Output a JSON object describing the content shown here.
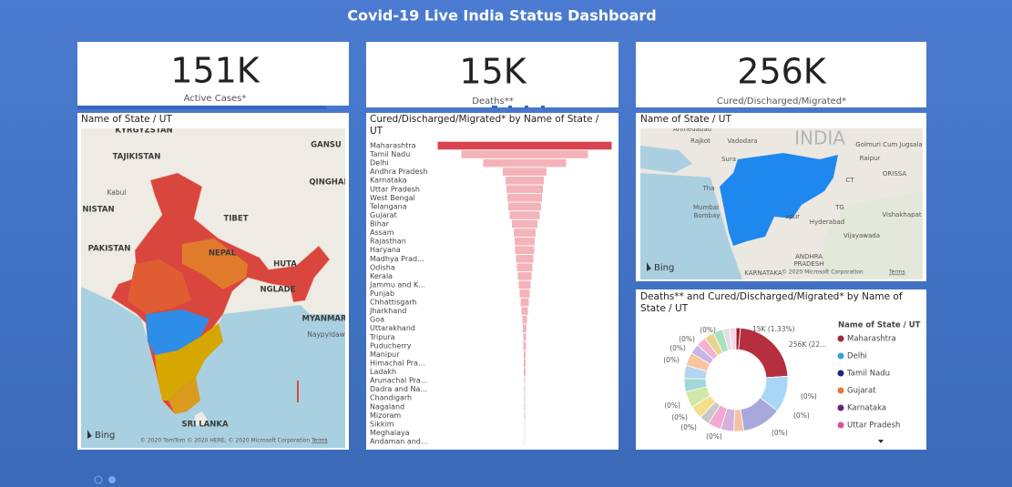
{
  "header": {
    "title": "Covid-19 Live India Status Dashboard"
  },
  "cards": [
    {
      "value": "151K",
      "label": "Active Cases*"
    },
    {
      "value": "15K",
      "label": "Deaths**"
    },
    {
      "value": "256K",
      "label": "Cured/Discharged/Migrated*"
    }
  ],
  "map_states": {
    "title": "Name of State / UT",
    "labels": [
      "KYRGYZSTAN",
      "TAJIKISTAN",
      "Kabul",
      "NISTAN",
      "PAKISTAN",
      "TIBET",
      "NEPAL",
      "GANSU",
      "QINGHAI",
      "HUTA",
      "NGLADE",
      "MYANMAR",
      "Naypyidaw",
      "SRI LANKA"
    ],
    "logo": "Bing",
    "attribution": "© 2020 TomTom © 2020 HERE, © 2020 Microsoft Corporation",
    "terms": "Terms"
  },
  "map_zoom": {
    "title": "Name of State / UT",
    "labels": [
      "Ahmedabad",
      "Rajkot",
      "Vadodara",
      "INDIA",
      "Golmuri Cum Jugsala",
      "Raipur",
      "Sura",
      "ORISSA",
      "CT",
      "Tha",
      "Mumbai",
      "Bombay",
      "TG",
      "Vishakhapat",
      "Hyderabad",
      "apur",
      "Vijayawada",
      "ANDHRA",
      "PRADESH",
      "KARNATAKA"
    ],
    "logo": "Bing",
    "attribution": "© 2020 Microsoft Corporation",
    "terms": "Terms"
  },
  "chart_data": [
    {
      "type": "funnel",
      "title": "Cured/Discharged/Migrated* by Name of State / UT",
      "categories": [
        "Maharashtra",
        "Tamil Nadu",
        "Delhi",
        "Andhra Pradesh",
        "Karnataka",
        "Uttar Pradesh",
        "West Bengal",
        "Telangana",
        "Gujarat",
        "Bihar",
        "Assam",
        "Rajasthan",
        "Haryana",
        "Madhya Prad...",
        "Odisha",
        "Kerala",
        "Jammu and K...",
        "Punjab",
        "Chhattisgarh",
        "Jharkhand",
        "Goa",
        "Uttarakhand",
        "Tripura",
        "Puducherry",
        "Manipur",
        "Himachal Pra...",
        "Ladakh",
        "Arunachal Pra...",
        "Dadra and Na...",
        "Chandigarh",
        "Nagaland",
        "Mizoram",
        "Sikkim",
        "Meghalaya",
        "Andaman and..."
      ],
      "values": [
        191,
        139,
        91,
        48,
        42,
        40,
        38,
        36,
        33,
        28,
        24,
        22,
        21,
        19,
        17,
        15,
        13,
        11,
        9,
        7,
        5,
        4,
        3,
        3,
        2,
        2,
        2,
        1,
        1,
        1,
        1,
        1,
        0.5,
        0.5,
        0.5
      ],
      "color": "#f4b3b8",
      "highlight_color": "#d9434f"
    },
    {
      "type": "donut",
      "title": "Deaths** and Cured/Discharged/Migrated* by Name of State / UT",
      "values": [
        1.33,
        22,
        11,
        12,
        3,
        4,
        4,
        3,
        4,
        5,
        4,
        4,
        4,
        3,
        3,
        3,
        3,
        2,
        2
      ],
      "colors": [
        "#9c1f2d",
        "#b52f3e",
        "#a8d6f6",
        "#a9a8dc",
        "#f2c2a4",
        "#d6b1de",
        "#f3a9d2",
        "#c8c8c8",
        "#f4df8a",
        "#cfe8a8",
        "#9fd8d6",
        "#b3d5f1",
        "#f7c6a0",
        "#c8b6e8",
        "#f2b3cf",
        "#e8d48e",
        "#a8e0c2",
        "#e0e0e0",
        "#fbd2e6"
      ],
      "annotations": [
        "15K (1.33%)",
        "256K (22...",
        "(0%)",
        "(0%)",
        "(0%)",
        "(0%)",
        "(0%)",
        "(0%)",
        "(0%)",
        "(0%)",
        "(0%)",
        "(0%)",
        "(0%)"
      ],
      "legend_title": "Name of State / UT",
      "legend": [
        {
          "name": "Maharashtra",
          "color": "#a3283a"
        },
        {
          "name": "Delhi",
          "color": "#3b9ee6"
        },
        {
          "name": "Tamil Nadu",
          "color": "#1d2a7a"
        },
        {
          "name": "Gujarat",
          "color": "#e07a38"
        },
        {
          "name": "Karnataka",
          "color": "#6c1f7c"
        },
        {
          "name": "Uttar Pradesh",
          "color": "#e44d9b"
        }
      ]
    }
  ]
}
